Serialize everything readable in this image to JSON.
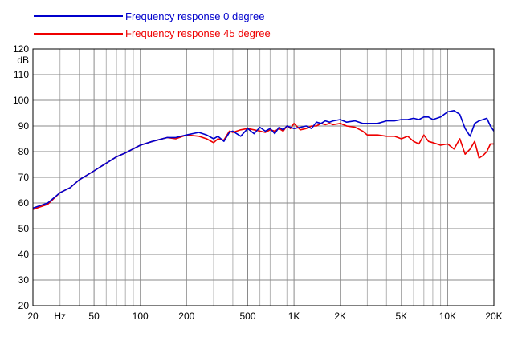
{
  "chart_data": {
    "type": "line",
    "x_scale": "log",
    "xlim": [
      20,
      20000
    ],
    "ylim": [
      20,
      120
    ],
    "ylabel": "dB",
    "x_unit_label": "Hz",
    "grid": true,
    "legend_position": "top-left",
    "x_tick_labels": [
      {
        "value": 20,
        "label": "20"
      },
      {
        "value": 30,
        "label": "Hz"
      },
      {
        "value": 50,
        "label": "50"
      },
      {
        "value": 100,
        "label": "100"
      },
      {
        "value": 200,
        "label": "200"
      },
      {
        "value": 500,
        "label": "500"
      },
      {
        "value": 1000,
        "label": "1K"
      },
      {
        "value": 2000,
        "label": "2K"
      },
      {
        "value": 5000,
        "label": "5K"
      },
      {
        "value": 10000,
        "label": "10K"
      },
      {
        "value": 20000,
        "label": "20K"
      }
    ],
    "y_ticks": [
      20,
      30,
      40,
      50,
      60,
      70,
      80,
      90,
      100,
      110,
      120
    ],
    "series": [
      {
        "name": "Frequency response 0 degree",
        "color": "#0000cc",
        "x": [
          20,
          25,
          30,
          35,
          40,
          50,
          60,
          70,
          80,
          100,
          120,
          150,
          170,
          200,
          240,
          270,
          300,
          320,
          350,
          380,
          400,
          450,
          500,
          550,
          600,
          650,
          700,
          750,
          800,
          850,
          900,
          950,
          1000,
          1100,
          1200,
          1300,
          1400,
          1500,
          1600,
          1700,
          1800,
          2000,
          2200,
          2500,
          2800,
          3000,
          3500,
          4000,
          4500,
          5000,
          5500,
          6000,
          6500,
          7000,
          7500,
          8000,
          8500,
          9000,
          10000,
          11000,
          12000,
          13000,
          14000,
          15000,
          16000,
          17000,
          18000,
          19000,
          20000
        ],
        "values": [
          58,
          60,
          64,
          66,
          69,
          72.5,
          75.5,
          78,
          79.5,
          82.5,
          84,
          85.5,
          85.5,
          86.5,
          87.5,
          86.5,
          85,
          86,
          84,
          87.5,
          88,
          86,
          89,
          87,
          89.5,
          88,
          89,
          87,
          89.5,
          88.5,
          90,
          89.5,
          89,
          89.5,
          90,
          89,
          91.5,
          91,
          92,
          91.5,
          92,
          92.5,
          91.5,
          92,
          91,
          91,
          91,
          92,
          92,
          92.5,
          92.5,
          93,
          92.5,
          93.5,
          93.5,
          92.5,
          93,
          93.5,
          95.5,
          96,
          94.5,
          89,
          86,
          91,
          92,
          92.5,
          93,
          90,
          88
        ]
      },
      {
        "name": "Frequency response 45 degree",
        "color": "#ee0000",
        "x": [
          20,
          25,
          30,
          35,
          40,
          50,
          60,
          70,
          80,
          100,
          120,
          150,
          170,
          200,
          240,
          270,
          300,
          320,
          350,
          380,
          400,
          450,
          500,
          550,
          600,
          650,
          700,
          750,
          800,
          850,
          900,
          950,
          1000,
          1100,
          1200,
          1300,
          1400,
          1500,
          1600,
          1700,
          1800,
          2000,
          2200,
          2500,
          2800,
          3000,
          3500,
          4000,
          4500,
          5000,
          5500,
          6000,
          6500,
          7000,
          7500,
          8000,
          8500,
          9000,
          10000,
          11000,
          12000,
          13000,
          14000,
          15000,
          16000,
          17000,
          18000,
          19000,
          20000
        ],
        "values": [
          57.5,
          59.5,
          64,
          66,
          69,
          72.5,
          75.5,
          78,
          79.5,
          82.5,
          84,
          85.5,
          85,
          86.5,
          86,
          85,
          83.5,
          85,
          84.5,
          88,
          87.5,
          88.5,
          89,
          88.5,
          88,
          87.5,
          88.5,
          88,
          89,
          88,
          90,
          89,
          91,
          88.5,
          89,
          90,
          90,
          91,
          90.5,
          91,
          90.5,
          91,
          90,
          89.5,
          88,
          86.5,
          86.5,
          86,
          86,
          85,
          86,
          84,
          83,
          86.5,
          84,
          83.5,
          83,
          82.5,
          83,
          81,
          85,
          79,
          81,
          84,
          77.5,
          78.5,
          80,
          83,
          83
        ]
      }
    ]
  }
}
